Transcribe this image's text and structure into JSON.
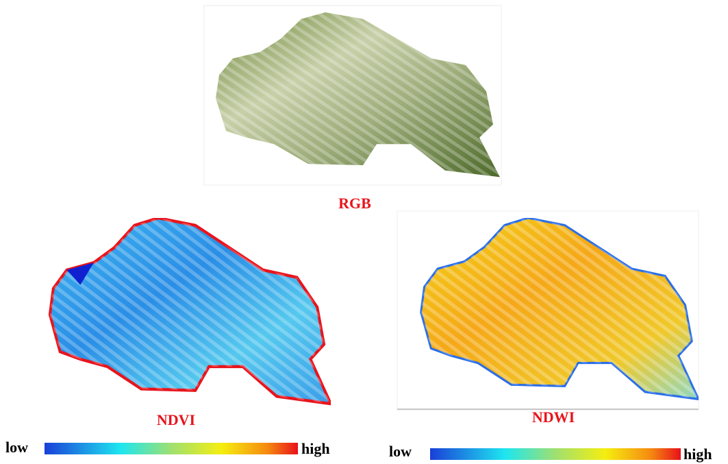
{
  "panels": [
    {
      "label": "RGB"
    },
    {
      "label": "NDVI",
      "colorbar": {
        "low": "low",
        "high": "high"
      }
    },
    {
      "label": "NDWI",
      "colorbar": {
        "low": "low",
        "high": "high"
      }
    }
  ]
}
